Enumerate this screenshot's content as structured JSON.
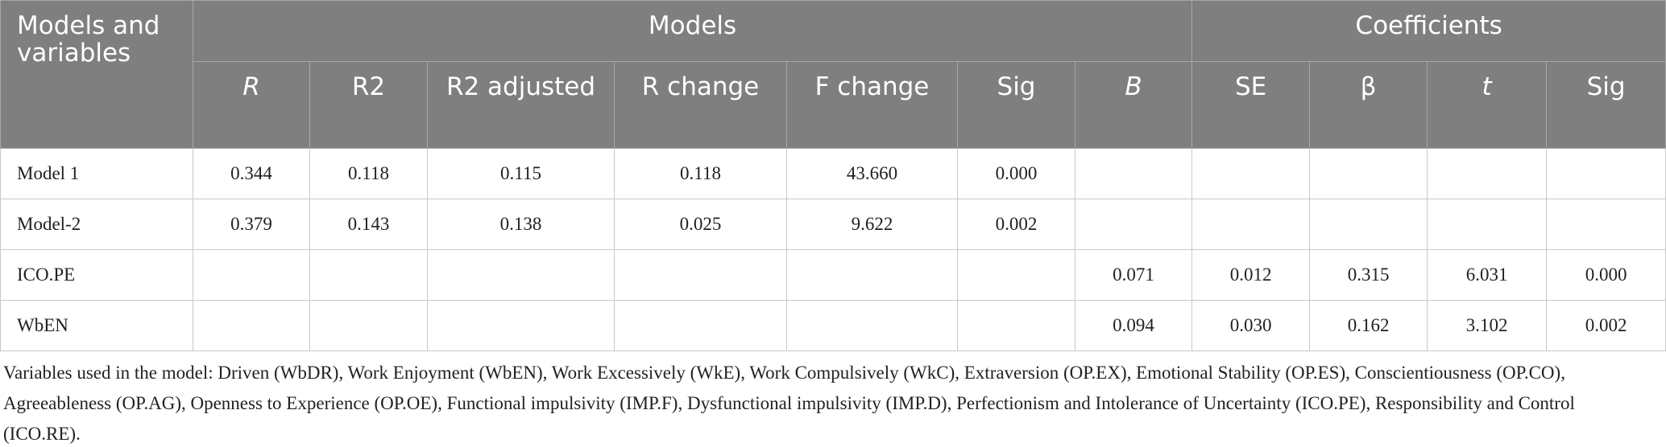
{
  "table": {
    "group_headers": [
      "Models and variables",
      "Models",
      "Coefficients"
    ],
    "column_headers": [
      "R",
      "R2",
      "R2 adjusted",
      "R change",
      "F change",
      "Sig",
      "B",
      "SE",
      "β",
      "t",
      "Sig"
    ],
    "rows": [
      [
        "Model 1",
        "0.344",
        "0.118",
        "0.115",
        "0.118",
        "43.660",
        "0.000",
        null,
        null,
        null,
        null,
        null
      ],
      [
        "Model-2",
        "0.379",
        "0.143",
        "0.138",
        "0.025",
        "9.622",
        "0.002",
        null,
        null,
        null,
        null,
        null
      ],
      [
        "ICO.PE",
        null,
        null,
        null,
        null,
        null,
        null,
        "0.071",
        "0.012",
        "0.315",
        "6.031",
        "0.000"
      ],
      [
        "WbEN",
        null,
        null,
        null,
        null,
        null,
        null,
        "0.094",
        "0.030",
        "0.162",
        "3.102",
        "0.002"
      ]
    ]
  },
  "footnote": "Variables used in the model: Driven (WbDR), Work Enjoyment (WbEN), Work Excessively (WkE), Work Compulsively (WkC), Extraversion (OP.EX), Emotional Stability (OP.ES), Conscientiousness (OP.CO), Agreeableness (OP.AG), Openness to Experience (OP.OE), Functional impulsivity (IMP.F), Dysfunctional impulsivity (IMP.D), Perfectionism and Intolerance of Uncertainty (ICO.PE), Responsibility and Control (ICO.RE)."
}
